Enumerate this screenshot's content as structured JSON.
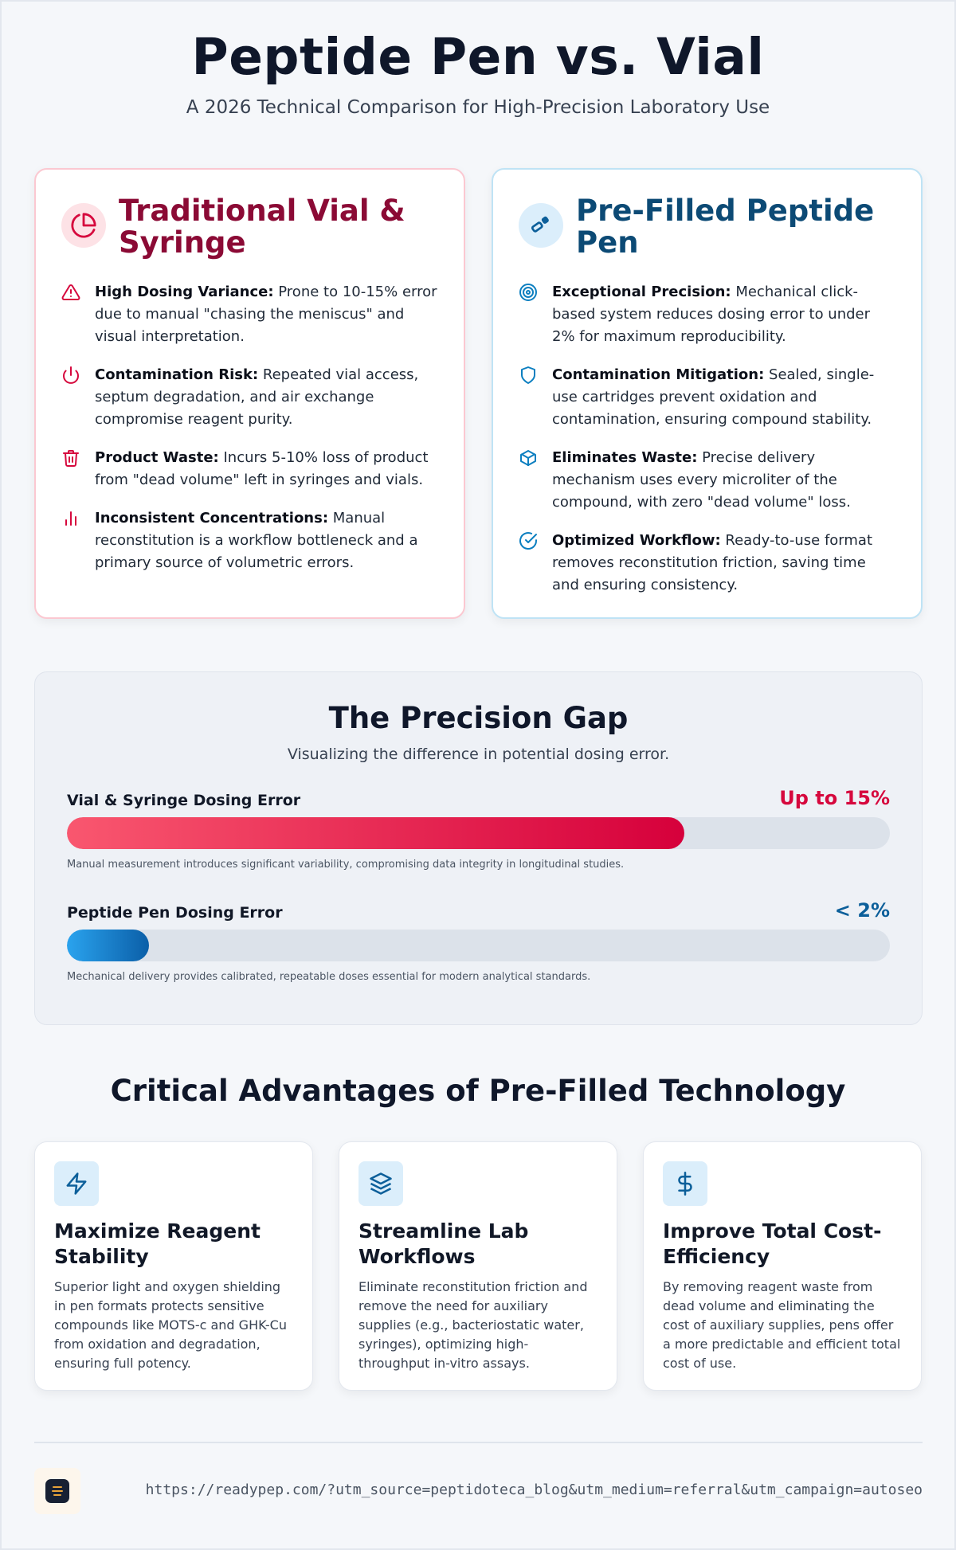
{
  "header": {
    "title": "Peptide Pen vs. Vial",
    "subtitle": "A 2026 Technical Comparison for High-Precision Laboratory Use"
  },
  "vial_card": {
    "title": "Traditional Vial & Syringe",
    "icon": "pie-chart-icon",
    "items": [
      {
        "icon": "warning-triangle-icon",
        "label": "High Dosing Variance:",
        "text": " Prone to 10-15% error due to manual \"chasing the meniscus\" and visual interpretation."
      },
      {
        "icon": "power-icon",
        "label": "Contamination Risk:",
        "text": " Repeated vial access, septum degradation, and air exchange compromise reagent purity."
      },
      {
        "icon": "trash-icon",
        "label": "Product Waste:",
        "text": " Incurs 5-10% loss of product from \"dead volume\" left in syringes and vials."
      },
      {
        "icon": "bar-chart-icon",
        "label": "Inconsistent Concentrations:",
        "text": " Manual reconstitution is a workflow bottleneck and a primary source of volumetric errors."
      }
    ]
  },
  "pen_card": {
    "title": "Pre-Filled Peptide Pen",
    "icon": "pen-icon",
    "items": [
      {
        "icon": "target-icon",
        "label": "Exceptional Precision:",
        "text": " Mechanical click-based system reduces dosing error to under 2% for maximum reproducibility."
      },
      {
        "icon": "shield-icon",
        "label": "Contamination Mitigation:",
        "text": " Sealed, single-use cartridges prevent oxidation and contamination, ensuring compound stability."
      },
      {
        "icon": "cube-icon",
        "label": "Eliminates Waste:",
        "text": " Precise delivery mechanism uses every microliter of the compound, with zero \"dead volume\" loss."
      },
      {
        "icon": "check-circle-icon",
        "label": "Optimized Workflow:",
        "text": " Ready-to-use format removes reconstitution friction, saving time and ensuring consistency."
      }
    ]
  },
  "precision_gap": {
    "title": "The Precision Gap",
    "subtitle": "Visualizing the difference in potential dosing error.",
    "bars": [
      {
        "label": "Vial & Syringe Dosing Error",
        "value_text": "Up to 15%",
        "fill_percent": 75,
        "color": "#d6003b",
        "note": "Manual measurement introduces significant variability, compromising data integrity in longitudinal studies."
      },
      {
        "label": "Peptide Pen Dosing Error",
        "value_text": "< 2%",
        "fill_percent": 10,
        "color": "#0b5fa8",
        "note": "Mechanical delivery provides calibrated, repeatable doses essential for modern analytical standards."
      }
    ]
  },
  "advantages": {
    "title": "Critical Advantages of Pre-Filled Technology",
    "cards": [
      {
        "icon": "lightning-icon",
        "title": "Maximize Reagent Stability",
        "text": "Superior light and oxygen shielding in pen formats protects sensitive compounds like MOTS-c and GHK-Cu from oxidation and degradation, ensuring full potency."
      },
      {
        "icon": "layers-icon",
        "title": "Streamline Lab Workflows",
        "text": "Eliminate reconstitution friction and remove the need for auxiliary supplies (e.g., bacteriostatic water, syringes), optimizing high-throughput in-vitro assays."
      },
      {
        "icon": "dollar-icon",
        "title": "Improve Total Cost-Efficiency",
        "text": "By removing reagent waste from dead volume and eliminating the cost of auxiliary supplies, pens offer a more predictable and efficient total cost of use."
      }
    ]
  },
  "footer": {
    "logo_icon": "brand-logo-icon",
    "url": "https://readypep.com/?utm_source=peptidoteca_blog&utm_medium=referral&utm_campaign=autoseo"
  }
}
